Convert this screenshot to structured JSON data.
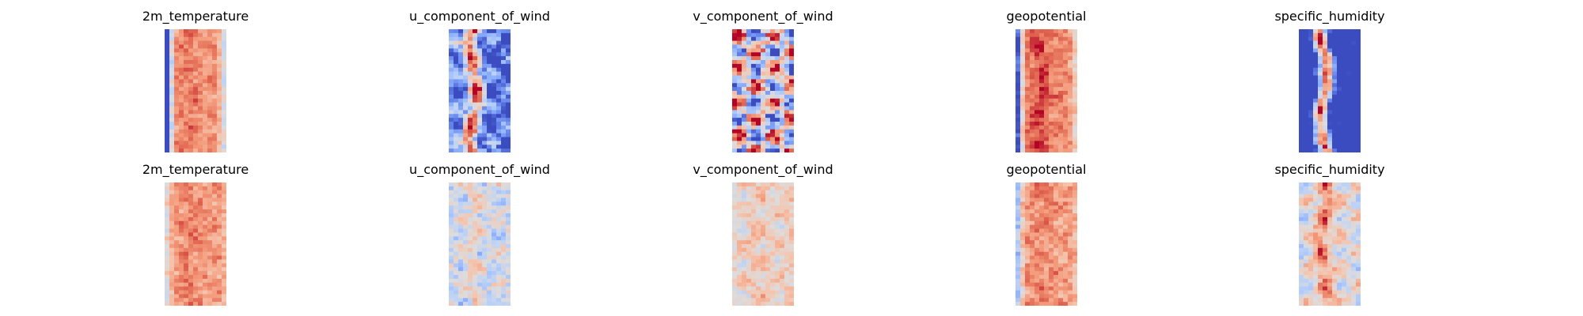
{
  "colors": {
    "colormap": "coolwarm",
    "background": "#ffffff",
    "cold": "#3b4cc0",
    "neutral": "#dddcdc",
    "warm": "#b40426"
  },
  "chart_data": {
    "type": "heatmap",
    "colormap": "coolwarm",
    "axes_visible": false,
    "grid": false,
    "legend": "none",
    "rows": 2,
    "columns": 5,
    "panels": [
      {
        "title": "2m_temperature",
        "row": 0,
        "col": 0,
        "field": {
          "base": 0.78,
          "mean": 0.8,
          "contrast": 0.35,
          "left_bias": -0.9,
          "right_bias": -0.25,
          "stripe": 0.05,
          "noise": 0.06,
          "blob": 0.04
        }
      },
      {
        "title": "u_component_of_wind",
        "row": 0,
        "col": 1,
        "field": {
          "base": 0.35,
          "mean": 0.38,
          "contrast": 0.45,
          "left_bias": 0.1,
          "right_bias": -0.05,
          "stripe": 0.55,
          "noise": 0.12,
          "blob": 0.18
        }
      },
      {
        "title": "v_component_of_wind",
        "row": 0,
        "col": 2,
        "field": {
          "base": 0.5,
          "mean": 0.5,
          "contrast": 0.55,
          "left_bias": 0.0,
          "right_bias": 0.0,
          "stripe": 0.0,
          "noise": 0.18,
          "blob": 0.35
        }
      },
      {
        "title": "geopotential",
        "row": 0,
        "col": 3,
        "field": {
          "base": 0.82,
          "mean": 0.78,
          "contrast": 0.4,
          "left_bias": -0.75,
          "right_bias": -0.2,
          "stripe": 0.1,
          "noise": 0.06,
          "blob": 0.04
        }
      },
      {
        "title": "specific_humidity",
        "row": 0,
        "col": 4,
        "field": {
          "base": 0.15,
          "mean": 0.25,
          "contrast": 0.5,
          "left_bias": -0.15,
          "right_bias": -0.1,
          "stripe": 0.7,
          "noise": 0.1,
          "blob": 0.1
        }
      },
      {
        "title": "2m_temperature",
        "row": 1,
        "col": 0,
        "field": {
          "base": 0.76,
          "mean": 0.76,
          "contrast": 0.18,
          "left_bias": -0.25,
          "right_bias": -0.05,
          "stripe": 0.06,
          "noise": 0.08,
          "blob": 0.05
        }
      },
      {
        "title": "u_component_of_wind",
        "row": 1,
        "col": 1,
        "field": {
          "base": 0.47,
          "mean": 0.47,
          "contrast": 0.2,
          "left_bias": 0.0,
          "right_bias": 0.02,
          "stripe": 0.08,
          "noise": 0.1,
          "blob": 0.1
        }
      },
      {
        "title": "v_component_of_wind",
        "row": 1,
        "col": 2,
        "field": {
          "base": 0.58,
          "mean": 0.58,
          "contrast": 0.15,
          "left_bias": -0.02,
          "right_bias": 0.04,
          "stripe": 0.05,
          "noise": 0.08,
          "blob": 0.08
        }
      },
      {
        "title": "geopotential",
        "row": 1,
        "col": 3,
        "field": {
          "base": 0.76,
          "mean": 0.76,
          "contrast": 0.2,
          "left_bias": -0.45,
          "right_bias": -0.1,
          "stripe": 0.05,
          "noise": 0.08,
          "blob": 0.06
        }
      },
      {
        "title": "specific_humidity",
        "row": 1,
        "col": 4,
        "field": {
          "base": 0.6,
          "mean": 0.6,
          "contrast": 0.2,
          "left_bias": -0.08,
          "right_bias": -0.02,
          "stripe": 0.22,
          "noise": 0.09,
          "blob": 0.12
        }
      }
    ]
  }
}
